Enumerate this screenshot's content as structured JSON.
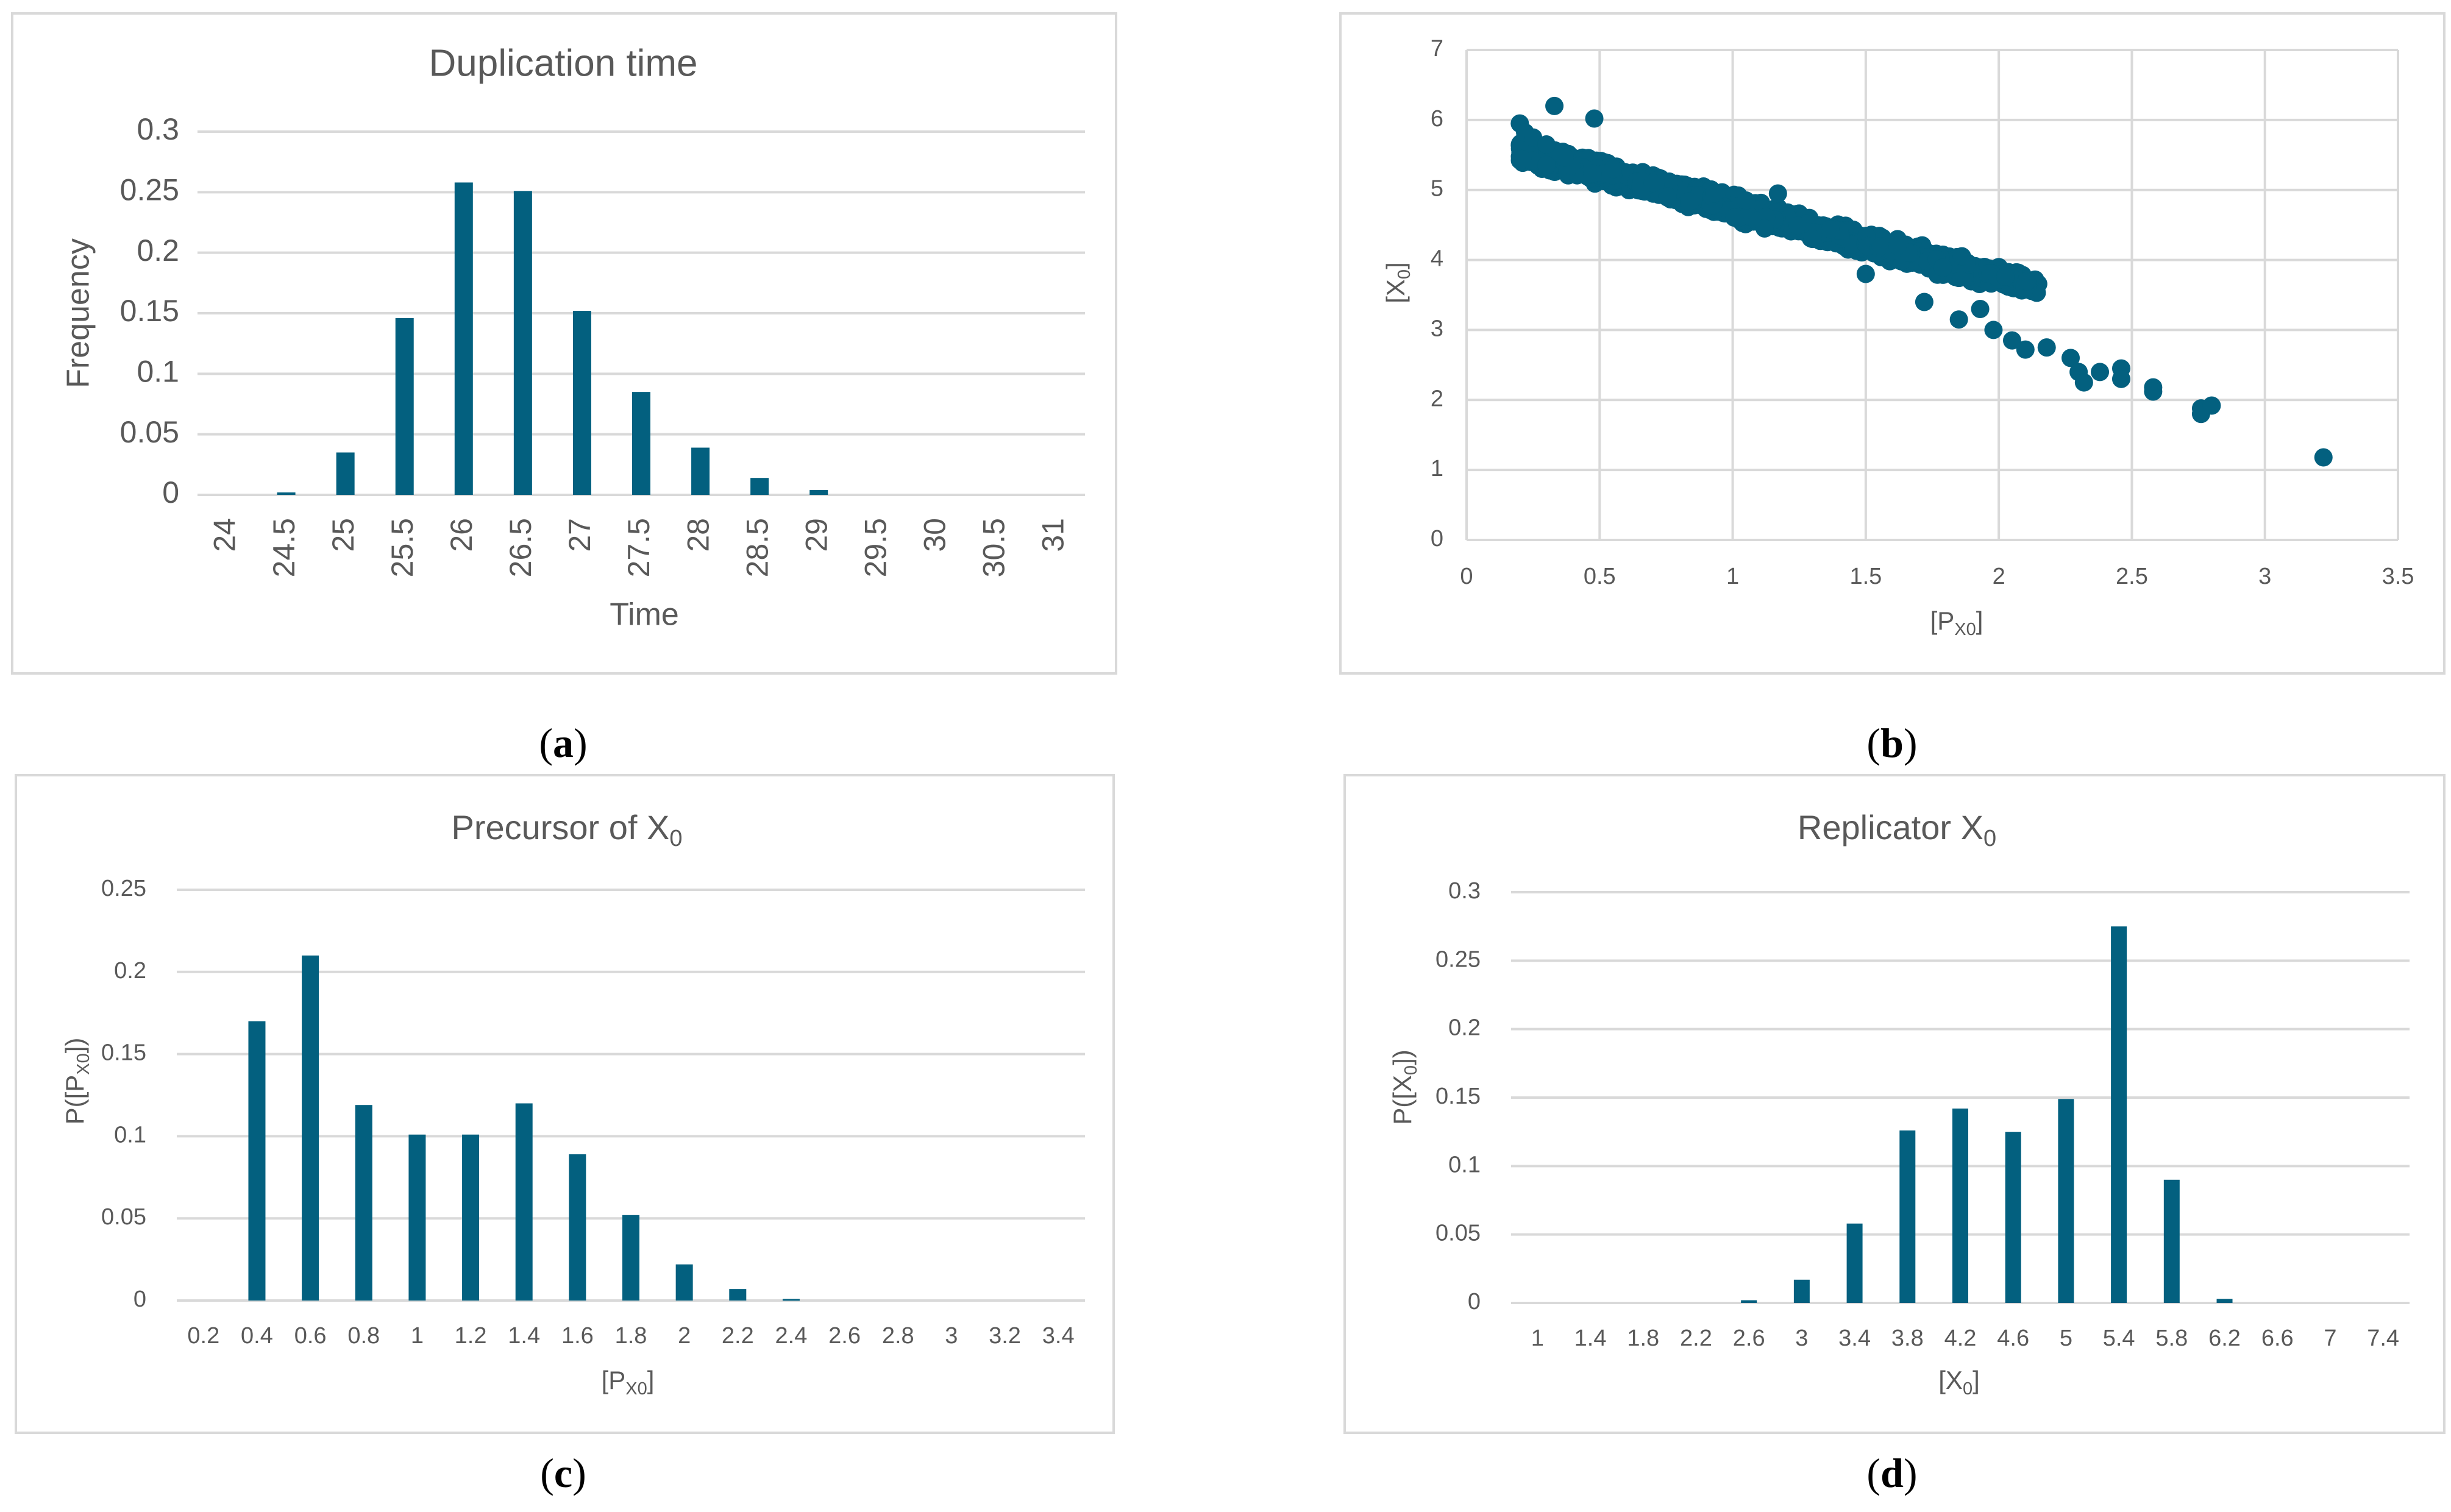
{
  "colors": {
    "bar": "#03607f",
    "grid": "#d9d9d9",
    "text": "#595959"
  },
  "captions": {
    "a": "a",
    "b": "b",
    "c": "c",
    "d": "d"
  },
  "chart_data": [
    {
      "id": "a",
      "type": "bar",
      "title": "Duplication time",
      "xlabel": "Time",
      "ylabel": "Frequency",
      "categories": [
        "24",
        "24.5",
        "25",
        "25.5",
        "26",
        "26.5",
        "27",
        "27.5",
        "28",
        "28.5",
        "29",
        "29.5",
        "30",
        "30.5",
        "31"
      ],
      "values": [
        0,
        0.002,
        0.035,
        0.146,
        0.258,
        0.251,
        0.152,
        0.085,
        0.039,
        0.014,
        0.004,
        0,
        0,
        0,
        0
      ],
      "yticks": [
        "0",
        "0.05",
        "0.1",
        "0.15",
        "0.2",
        "0.25",
        "0.3"
      ],
      "ylim": [
        0,
        0.3
      ]
    },
    {
      "id": "b",
      "type": "scatter",
      "title": "",
      "xlabel": "[P",
      "xlabel_sub": "X0",
      "xlabel_end": "]",
      "ylabel": "[X",
      "ylabel_sub": "0",
      "ylabel_end": "]",
      "xticks": [
        "0",
        "0.5",
        "1",
        "1.5",
        "2",
        "2.5",
        "3",
        "3.5"
      ],
      "yticks": [
        "0",
        "1",
        "2",
        "3",
        "4",
        "5",
        "6",
        "7"
      ],
      "xlim": [
        0,
        3.5
      ],
      "ylim": [
        0,
        7
      ],
      "trend": {
        "slope": -1.0,
        "intercept": 5.75,
        "x_from": 0.2,
        "x_to": 2.15,
        "spread": 0.22
      },
      "points": [
        [
          0.2,
          5.95
        ],
        [
          0.22,
          5.82
        ],
        [
          0.25,
          5.75
        ],
        [
          0.3,
          5.65
        ],
        [
          0.33,
          6.2
        ],
        [
          0.48,
          6.02
        ],
        [
          0.55,
          5.3
        ],
        [
          0.7,
          5.1
        ],
        [
          0.93,
          4.95
        ],
        [
          1.05,
          4.85
        ],
        [
          1.12,
          4.45
        ],
        [
          1.17,
          4.95
        ],
        [
          1.3,
          4.3
        ],
        [
          1.5,
          3.8
        ],
        [
          1.62,
          4.2
        ],
        [
          1.72,
          3.4
        ],
        [
          1.85,
          3.15
        ],
        [
          1.93,
          3.3
        ],
        [
          1.98,
          3.0
        ],
        [
          2.05,
          2.85
        ],
        [
          2.1,
          2.72
        ],
        [
          2.18,
          2.75
        ],
        [
          2.27,
          2.6
        ],
        [
          2.3,
          2.4
        ],
        [
          2.32,
          2.25
        ],
        [
          2.38,
          2.4
        ],
        [
          2.46,
          2.45
        ],
        [
          2.46,
          2.3
        ],
        [
          2.58,
          2.18
        ],
        [
          2.58,
          2.12
        ],
        [
          2.76,
          1.88
        ],
        [
          2.76,
          1.8
        ],
        [
          2.8,
          1.92
        ],
        [
          3.22,
          1.18
        ]
      ]
    },
    {
      "id": "c",
      "type": "bar",
      "title": "Precursor of X",
      "title_sub": "0",
      "xlabel": "[P",
      "xlabel_sub": "X0",
      "xlabel_end": "]",
      "ylabel": "P([P",
      "ylabel_sub": "X0",
      "ylabel_end": "])",
      "categories": [
        "0.2",
        "0.4",
        "0.6",
        "0.8",
        "1",
        "1.2",
        "1.4",
        "1.6",
        "1.8",
        "2",
        "2.2",
        "2.4",
        "2.6",
        "2.8",
        "3",
        "3.2",
        "3.4"
      ],
      "values": [
        0,
        0.17,
        0.21,
        0.119,
        0.101,
        0.101,
        0.12,
        0.089,
        0.052,
        0.022,
        0.007,
        0.001,
        0,
        0,
        0,
        0,
        0
      ],
      "yticks": [
        "0",
        "0.05",
        "0.1",
        "0.15",
        "0.2",
        "0.25"
      ],
      "ylim": [
        0,
        0.25
      ]
    },
    {
      "id": "d",
      "type": "bar",
      "title": "Replicator X",
      "title_sub": "0",
      "xlabel": "[X",
      "xlabel_sub": "0",
      "xlabel_end": "]",
      "ylabel": "P([X",
      "ylabel_sub": "0",
      "ylabel_end": "])",
      "categories": [
        "1",
        "1.4",
        "1.8",
        "2.2",
        "2.6",
        "3",
        "3.4",
        "3.8",
        "4.2",
        "4.6",
        "5",
        "5.4",
        "5.8",
        "6.2",
        "6.6",
        "7",
        "7.4"
      ],
      "values": [
        0,
        0,
        0,
        0,
        0.002,
        0.017,
        0.058,
        0.126,
        0.142,
        0.125,
        0.149,
        0.275,
        0.09,
        0.003,
        0,
        0,
        0
      ],
      "yticks": [
        "0",
        "0.05",
        "0.1",
        "0.15",
        "0.2",
        "0.25",
        "0.3"
      ],
      "ylim": [
        0,
        0.3
      ]
    }
  ]
}
